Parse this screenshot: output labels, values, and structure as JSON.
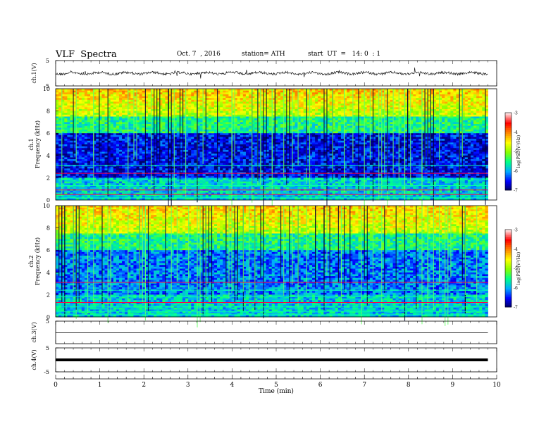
{
  "header": {
    "title": "VLF  Spectra",
    "date": "Oct. 7  , 2016",
    "station": "station= ATH",
    "start": "start  UT  =   14: 0  : 1"
  },
  "chart_data": [
    {
      "type": "line",
      "ylabel": "ch.1(V)",
      "ylim": [
        -5,
        5
      ],
      "yticks": [
        "5",
        "-5"
      ],
      "x_range": [
        0,
        9.8
      ],
      "mean_value": 0.0,
      "noise_amplitude": 1.0
    },
    {
      "type": "heatmap",
      "ylabel": "ch.1\nFrequency (kHz)",
      "ylabel_lines": [
        "ch.1",
        "Frequency (kHz)"
      ],
      "ylim": [
        0,
        10
      ],
      "yticks": [
        "0",
        "2",
        "4",
        "6",
        "8",
        "10"
      ],
      "x_range": [
        0,
        9.8
      ],
      "colorbar": {
        "label": "log(PSD(V²/Hz)",
        "range": [
          -7,
          -3
        ],
        "ticks": [
          "-3",
          "-4",
          "-5",
          "-6",
          "-7"
        ],
        "colors": [
          "#000055",
          "#0000ff",
          "#00aaff",
          "#00ff88",
          "#88ff00",
          "#ffff00",
          "#ff8800",
          "#ff0000",
          "#ffdddd"
        ]
      }
    },
    {
      "type": "heatmap",
      "ylabel": "ch.2\nFrequency (kHz)",
      "ylabel_lines": [
        "ch.2",
        "Frequency (kHz)"
      ],
      "ylim": [
        0,
        10
      ],
      "yticks": [
        "0",
        "2",
        "4",
        "6",
        "8",
        "10"
      ],
      "x_range": [
        0,
        9.8
      ],
      "colorbar": {
        "label": "log(PSD(V²/Hz)",
        "range": [
          -7,
          -3
        ],
        "ticks": [
          "-3",
          "-4",
          "-5",
          "-6",
          "-7"
        ]
      }
    },
    {
      "type": "line",
      "ylabel": "ch.3(V)",
      "ylim": [
        -5,
        5
      ],
      "yticks": [
        "5"
      ],
      "x_range": [
        0,
        9.8
      ],
      "mean_value": -0.2
    },
    {
      "type": "line",
      "ylabel": "ch.4(V)",
      "ylim": [
        -5,
        5
      ],
      "yticks": [
        "5",
        "-5"
      ],
      "x_range": [
        0,
        9.8
      ],
      "mean_value": 0.0
    }
  ],
  "xaxis": {
    "label": "Time  (min)",
    "range": [
      0,
      10
    ],
    "ticks": [
      "0",
      "1",
      "2",
      "3",
      "4",
      "5",
      "6",
      "7",
      "8",
      "9",
      "10"
    ]
  }
}
